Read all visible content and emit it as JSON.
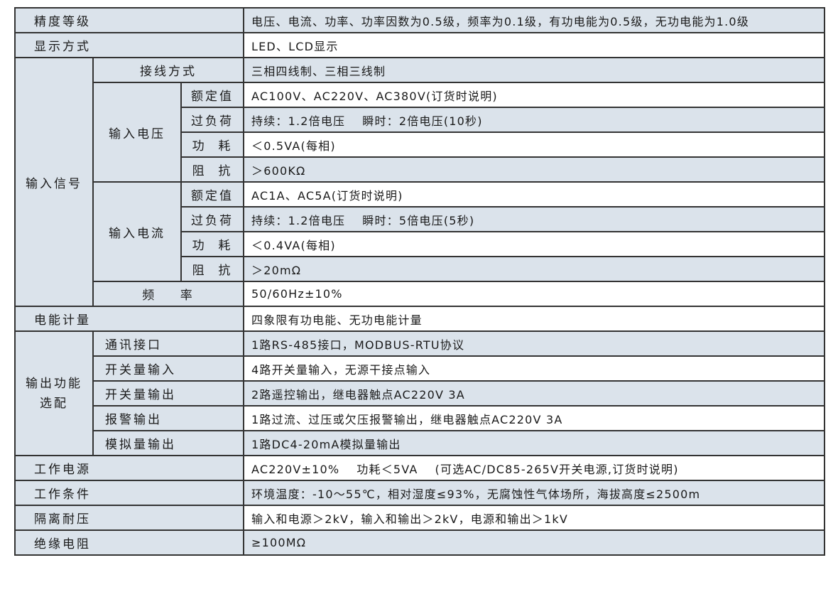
{
  "colors": {
    "shade": "#dbe3eb",
    "border": "#333333"
  },
  "rows": {
    "accuracy": {
      "label": "精度等级",
      "value": "电压、电流、功率、功率因数为0.5级，频率为0.1级，有功电能为0.5级，无功电能为1.0级"
    },
    "display": {
      "label": "显示方式",
      "value": "LED、LCD显示"
    },
    "input_signal": {
      "label": "输入信号"
    },
    "wiring": {
      "label": "接线方式",
      "value": "三相四线制、三相三线制"
    },
    "input_voltage": {
      "label": "输入电压",
      "rated": {
        "label": "额定值",
        "value": "AC100V、AC220V、AC380V(订货时说明)"
      },
      "overload": {
        "label": "过负荷",
        "value": "持续：1.2倍电压",
        "value2": "瞬时：2倍电压(10秒)"
      },
      "power": {
        "label": "功  耗",
        "value": "＜0.5VA(每相)"
      },
      "impedance": {
        "label": "阻  抗",
        "value": "＞600KΩ"
      }
    },
    "input_current": {
      "label": "输入电流",
      "rated": {
        "label": "额定值",
        "value": "AC1A、AC5A(订货时说明)"
      },
      "overload": {
        "label": "过负荷",
        "value": "持续：1.2倍电压",
        "value2": "瞬时：5倍电压(5秒)"
      },
      "power": {
        "label": "功  耗",
        "value": "＜0.4VA(每相)"
      },
      "impedance": {
        "label": "阻  抗",
        "value": "＞20mΩ"
      }
    },
    "frequency": {
      "label": "频    率",
      "value": "50/60Hz±10%"
    },
    "energy": {
      "label": "电能计量",
      "value": "四象限有功电能、无功电能计量"
    },
    "output": {
      "label_line1": "输出功能",
      "label_line2": "选配",
      "comm": {
        "label": "通讯接口",
        "value": "1路RS-485接口，MODBUS-RTU协议"
      },
      "di": {
        "label": "开关量输入",
        "value": "4路开关量输入，无源干接点输入"
      },
      "do": {
        "label": "开关量输出",
        "value": "2路遥控输出，继电器触点AC220V 3A"
      },
      "alarm": {
        "label": "报警输出",
        "value": "1路过流、过压或欠压报警输出，继电器触点AC220V 3A"
      },
      "analog": {
        "label": "模拟量输出",
        "value": "1路DC4-20mA模拟量输出"
      }
    },
    "power_supply": {
      "label": "工作电源",
      "value": "AC220V±10%",
      "value2": "功耗＜5VA",
      "value3": "(可选AC/DC85-265V开关电源,订货时说明)"
    },
    "conditions": {
      "label": "工作条件",
      "value": "环境温度：-10～55℃，相对湿度≤93%，无腐蚀性气体场所，海拔高度≤2500m"
    },
    "isolation": {
      "label": "隔离耐压",
      "value": "输入和电源＞2kV，输入和输出＞2kV，电源和输出＞1kV"
    },
    "insulation": {
      "label": "绝缘电阻",
      "value": "≥100MΩ"
    }
  }
}
